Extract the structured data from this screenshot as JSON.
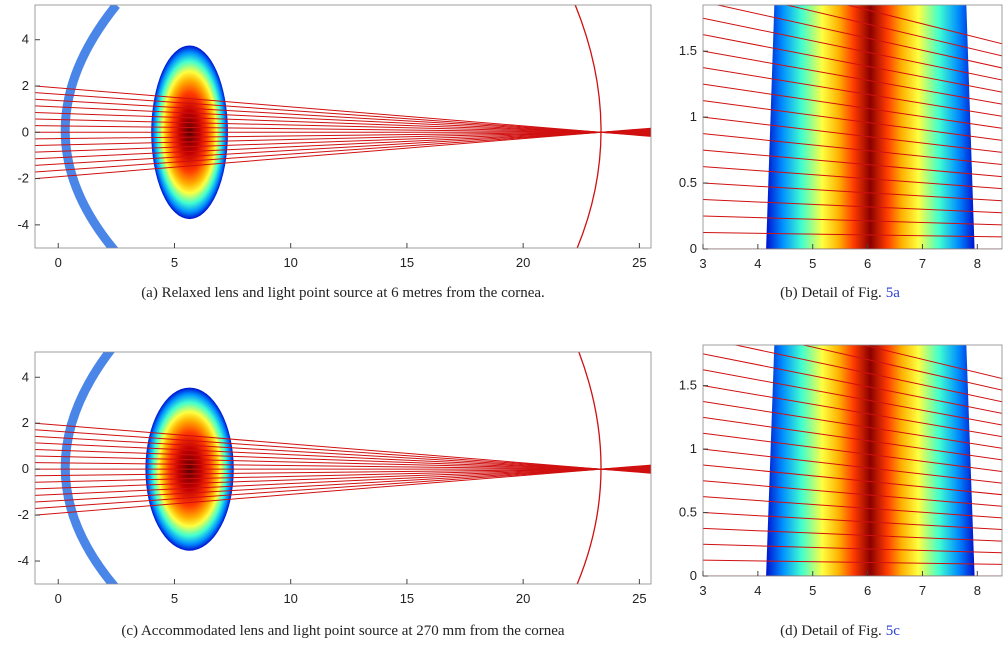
{
  "chart_data": [
    {
      "type": "optics",
      "xlim": [
        -1,
        25.5
      ],
      "ylim": [
        -5,
        5.5
      ],
      "xticks": [
        0,
        5,
        10,
        15,
        20,
        25
      ],
      "yticks": [
        -4,
        -2,
        0,
        2,
        4
      ],
      "caption": "(a) Relaxed lens and light point source at 6 metres from the cornea."
    },
    {
      "type": "optics-detail",
      "xlim": [
        3,
        8.45
      ],
      "ylim": [
        0,
        1.85
      ],
      "xticks": [
        3,
        4,
        5,
        6,
        7,
        8
      ],
      "yticks": [
        0,
        0.5,
        1,
        1.5
      ],
      "caption": "(b) Detail of Fig.",
      "caption_ref": "5a"
    },
    {
      "type": "optics",
      "xlim": [
        -1,
        25.5
      ],
      "ylim": [
        -5,
        5.1
      ],
      "xticks": [
        0,
        5,
        10,
        15,
        20,
        25
      ],
      "yticks": [
        -4,
        -2,
        0,
        2,
        4
      ],
      "caption": "(c) Accommodated lens and light point source at 270 mm from the cornea"
    },
    {
      "type": "optics-detail",
      "xlim": [
        3,
        8.45
      ],
      "ylim": [
        0,
        1.82
      ],
      "xticks": [
        3,
        4,
        5,
        6,
        7,
        8
      ],
      "yticks": [
        0,
        0.5,
        1,
        1.5
      ],
      "caption": "(d) Detail of Fig.",
      "caption_ref": "5c"
    }
  ]
}
